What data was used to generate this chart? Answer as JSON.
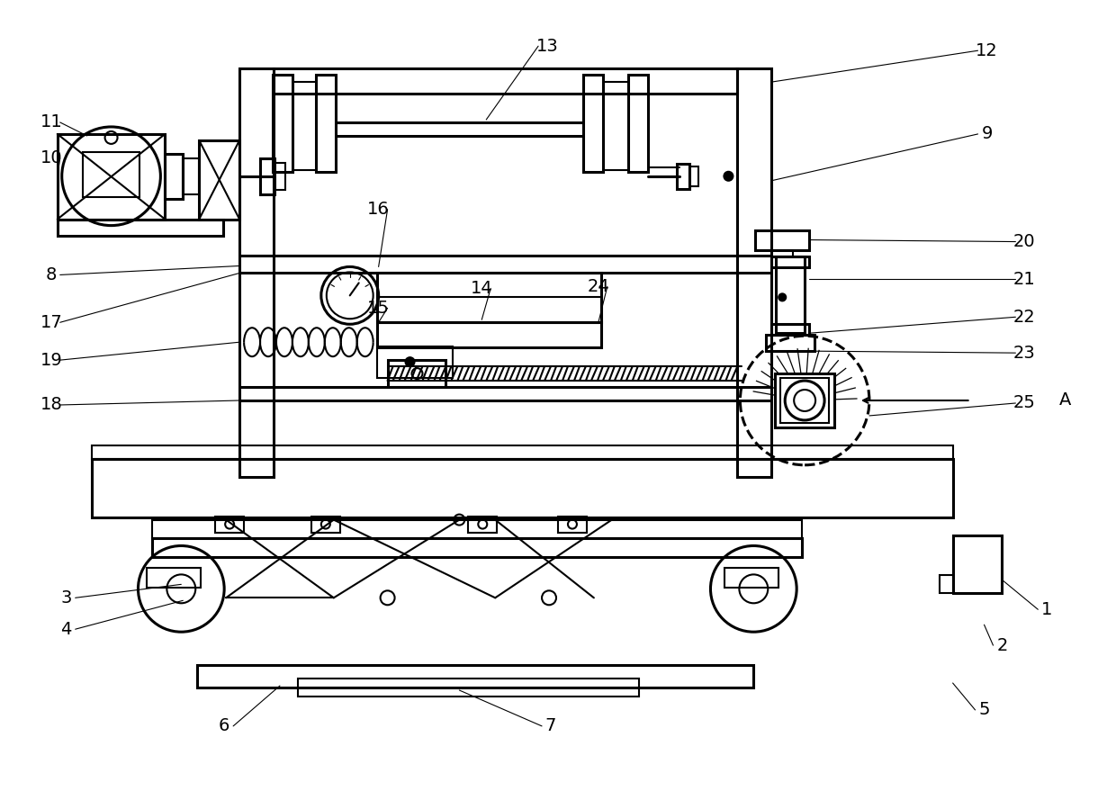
{
  "bg_color": "#ffffff",
  "line_color": "#000000",
  "lw": 1.5,
  "lw2": 2.2
}
